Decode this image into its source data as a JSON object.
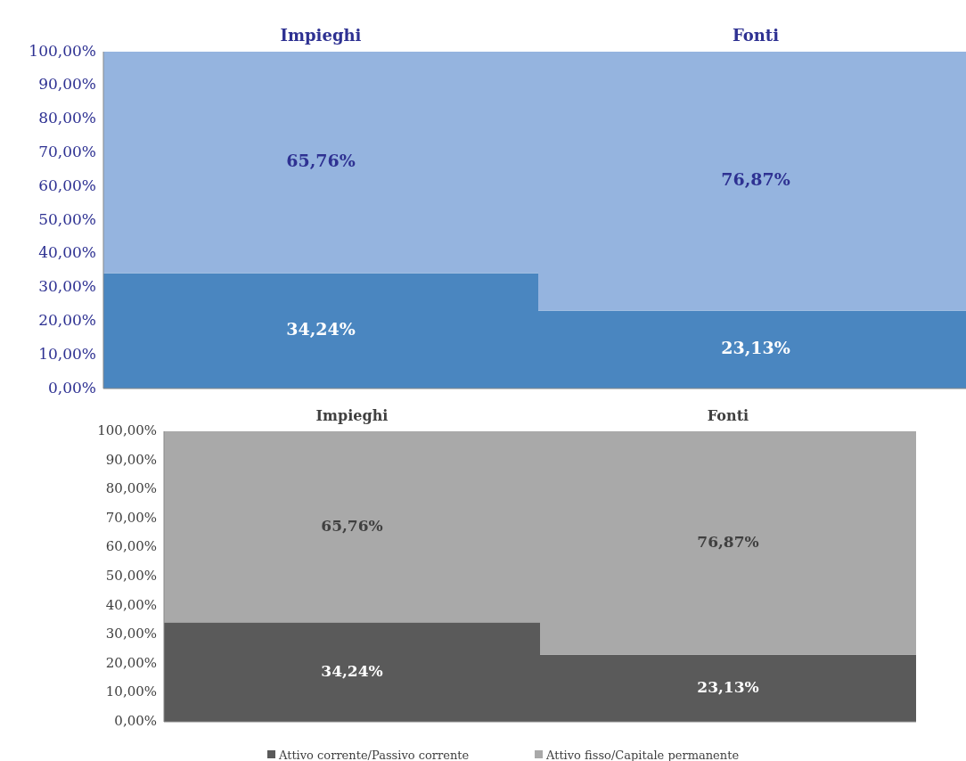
{
  "chart_data": [
    {
      "type": "bar",
      "stacked": true,
      "categories": [
        "Impieghi",
        "Fonti"
      ],
      "ylim": [
        0,
        100
      ],
      "yticks": [
        {
          "value": 0,
          "label": "0,00%"
        },
        {
          "value": 10,
          "label": "10,00%"
        },
        {
          "value": 20,
          "label": "20,00%"
        },
        {
          "value": 30,
          "label": "30,00%"
        },
        {
          "value": 40,
          "label": "40,00%"
        },
        {
          "value": 50,
          "label": "50,00%"
        },
        {
          "value": 60,
          "label": "60,00%"
        },
        {
          "value": 70,
          "label": "70,00%"
        },
        {
          "value": 80,
          "label": "80,00%"
        },
        {
          "value": 90,
          "label": "90,00%"
        },
        {
          "value": 100,
          "label": "100,00%"
        }
      ],
      "grid": false,
      "legend": false,
      "series": [
        {
          "color": "#4a86c0",
          "values": [
            34.24,
            23.13
          ],
          "value_labels": [
            "34,24%",
            "23,13%"
          ]
        },
        {
          "color": "#95b4df",
          "values": [
            65.76,
            76.87
          ],
          "value_labels": [
            "65,76%",
            "76,87%"
          ]
        }
      ]
    },
    {
      "type": "bar",
      "stacked": true,
      "categories": [
        "Impieghi",
        "Fonti"
      ],
      "ylim": [
        0,
        100
      ],
      "yticks": [
        {
          "value": 0,
          "label": "0,00%"
        },
        {
          "value": 10,
          "label": "10,00%"
        },
        {
          "value": 20,
          "label": "20,00%"
        },
        {
          "value": 30,
          "label": "30,00%"
        },
        {
          "value": 40,
          "label": "40,00%"
        },
        {
          "value": 50,
          "label": "50,00%"
        },
        {
          "value": 60,
          "label": "60,00%"
        },
        {
          "value": 70,
          "label": "70,00%"
        },
        {
          "value": 80,
          "label": "80,00%"
        },
        {
          "value": 90,
          "label": "90,00%"
        },
        {
          "value": 100,
          "label": "100,00%"
        }
      ],
      "grid": false,
      "legend": "bottom",
      "series": [
        {
          "name": "Attivo corrente/Passivo corrente",
          "color": "#5a5a5a",
          "values": [
            34.24,
            23.13
          ],
          "value_labels": [
            "34,24%",
            "23,13%"
          ]
        },
        {
          "name": "Attivo fisso/Capitale permanente",
          "color": "#a9a9a9",
          "values": [
            65.76,
            76.87
          ],
          "value_labels": [
            "65,76%",
            "76,87%"
          ]
        }
      ]
    }
  ]
}
